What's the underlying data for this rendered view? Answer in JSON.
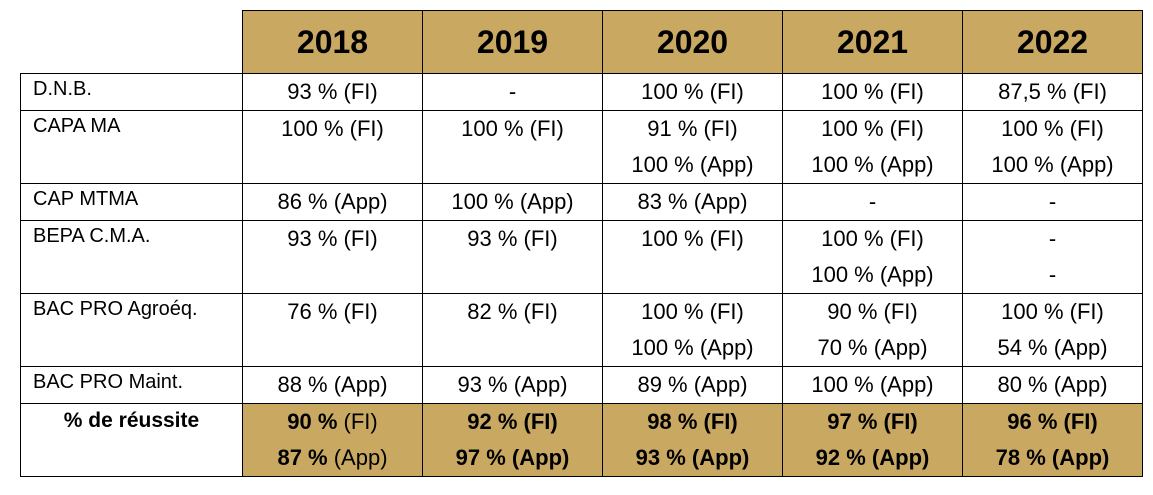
{
  "years": [
    "2018",
    "2019",
    "2020",
    "2021",
    "2022"
  ],
  "rows": [
    {
      "label": "D.N.B.",
      "cells": [
        [
          "93 % (FI)"
        ],
        [
          "-"
        ],
        [
          "100 %  (FI)"
        ],
        [
          "100 % (FI)"
        ],
        [
          "87,5 % (FI)"
        ]
      ]
    },
    {
      "label": "CAPA MA",
      "cells": [
        [
          "100 % (FI)"
        ],
        [
          "100 % (FI)"
        ],
        [
          "91 % (FI)",
          "100 % (App)"
        ],
        [
          "100 % (FI)",
          "100 % (App)"
        ],
        [
          "100 % (FI)",
          "100 % (App)"
        ]
      ]
    },
    {
      "label": "CAP MTMA",
      "cells": [
        [
          "86 % (App)"
        ],
        [
          "100 % (App)"
        ],
        [
          "83 % (App)"
        ],
        [
          "-"
        ],
        [
          "-"
        ]
      ]
    },
    {
      "label": "BEPA C.M.A.",
      "cells": [
        [
          "93 % (FI)"
        ],
        [
          "93 % (FI)"
        ],
        [
          "100 % (FI)"
        ],
        [
          "100 % (FI)",
          "100 % (App)"
        ],
        [
          "-",
          "-"
        ]
      ]
    },
    {
      "label": "BAC PRO Agroéq.",
      "cells": [
        [
          "76 % (FI)"
        ],
        [
          "82 % (FI)"
        ],
        [
          "100 % (FI)",
          "100 % (App)"
        ],
        [
          "90 % (FI)",
          "70 % (App)"
        ],
        [
          "100 % (FI)",
          "54 % (App)"
        ]
      ]
    },
    {
      "label": "BAC PRO Maint.",
      "cells": [
        [
          "88 % (App)"
        ],
        [
          "93 % (App)"
        ],
        [
          "89 % (App)"
        ],
        [
          "100 % (App)"
        ],
        [
          "80 % (App)"
        ]
      ]
    }
  ],
  "total": {
    "label": "% de réussite",
    "cells": [
      [
        {
          "pct": "90 %",
          "suffix": " (FI)",
          "suffix_bold": false
        },
        {
          "pct": "87 %",
          "suffix": " (App)",
          "suffix_bold": false
        }
      ],
      [
        {
          "pct": "92 %",
          "suffix": " (FI)",
          "suffix_bold": true
        },
        {
          "pct": "97 %",
          "suffix": " (App)",
          "suffix_bold": true
        }
      ],
      [
        {
          "pct": "98 %",
          "suffix": " (FI)",
          "suffix_bold": true
        },
        {
          "pct": "93 %",
          "suffix": " (App)",
          "suffix_bold": true
        }
      ],
      [
        {
          "pct": "97 %",
          "suffix": " (FI)",
          "suffix_bold": true
        },
        {
          "pct": "92 %",
          "suffix": " (App)",
          "suffix_bold": true
        }
      ],
      [
        {
          "pct": "96 %",
          "suffix": " (FI)",
          "suffix_bold": true
        },
        {
          "pct": "78 %",
          "suffix": " (App)",
          "suffix_bold": true
        }
      ]
    ]
  },
  "colors": {
    "header_fill": "#c9a862",
    "border": "#000000"
  }
}
